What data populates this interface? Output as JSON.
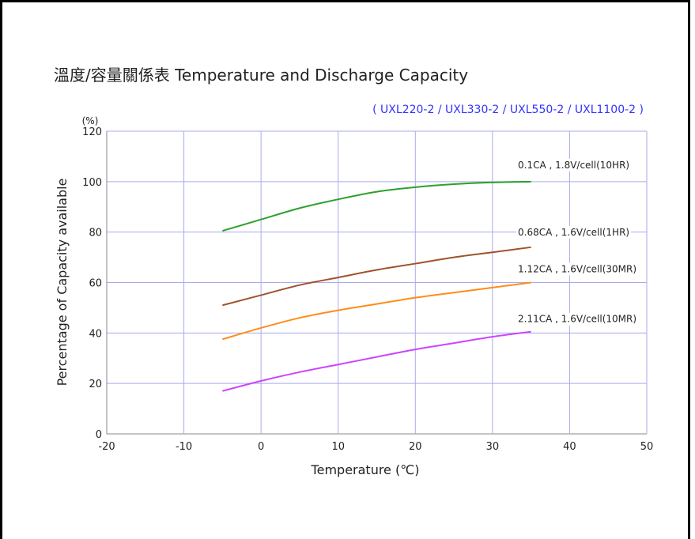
{
  "chart_data": {
    "type": "line",
    "title": "溫度/容量關係表 Temperature and Discharge Capacity",
    "subtitle": "( UXL220-2 / UXL330-2 / UXL550-2 / UXL1100-2 )",
    "xlabel": "Temperature (℃)",
    "ylabel": "Percentage of Capacity available",
    "yunit": "(%)",
    "xlim": [
      -20,
      50
    ],
    "ylim": [
      0,
      120
    ],
    "xticks": [
      "-20",
      "-10",
      "0",
      "10",
      "20",
      "30",
      "40",
      "50"
    ],
    "yticks": [
      "0",
      "20",
      "40",
      "60",
      "80",
      "100",
      "120"
    ],
    "grid": true,
    "series": [
      {
        "name": "0.1CA , 1.8V/cell(10HR)",
        "color": "#2ca02c",
        "x": [
          -5,
          0,
          5,
          10,
          15,
          20,
          25,
          30,
          35
        ],
        "y": [
          80.5,
          85,
          89.5,
          93,
          96,
          97.8,
          99,
          99.7,
          100
        ]
      },
      {
        "name": "0.68CA , 1.6V/cell(1HR)",
        "color": "#a0522d",
        "x": [
          -5,
          0,
          5,
          10,
          15,
          20,
          25,
          30,
          35
        ],
        "y": [
          51,
          55,
          59,
          62,
          65,
          67.5,
          70,
          72,
          74
        ]
      },
      {
        "name": "1.12CA , 1.6V/cell(30MR)",
        "color": "#ff8c1a",
        "x": [
          -5,
          0,
          5,
          10,
          15,
          20,
          25,
          30,
          35
        ],
        "y": [
          37.5,
          42,
          46,
          49,
          51.5,
          54,
          56,
          58,
          60
        ]
      },
      {
        "name": "2.11CA , 1.6V/cell(10MR)",
        "color": "#cc44ff",
        "x": [
          -5,
          0,
          5,
          10,
          15,
          20,
          25,
          30,
          35
        ],
        "y": [
          17,
          21,
          24.5,
          27.5,
          30.5,
          33.5,
          36,
          38.5,
          40.5
        ]
      }
    ]
  },
  "colors": {
    "grid": "#aaaaee",
    "subtitle": "#3333ff",
    "axis": "#888888"
  }
}
